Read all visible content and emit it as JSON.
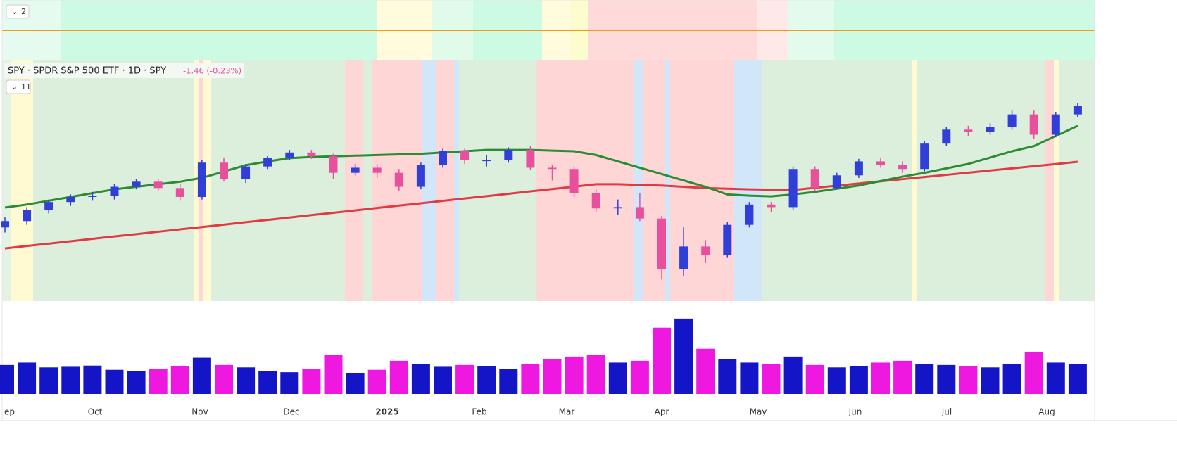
{
  "header": {
    "symbol": "SPY · SPDR S&P 500 ETF · 1D · SPY",
    "change": "-1.46 (-0.23%)"
  },
  "badges": [
    "2",
    "11"
  ],
  "x_axis_labels": [
    "ep",
    "Oct",
    "Nov",
    "Dec",
    "2025",
    "Feb",
    "Mar",
    "Apr",
    "May",
    "Jun",
    "Jul",
    "Aug"
  ],
  "chart": {
    "ylim": [
      490,
      680
    ],
    "up_color": "#2f3fd8",
    "down_color": "#e8509e",
    "candles": {
      "open": [
        548,
        553,
        562,
        568,
        572,
        573,
        580,
        584,
        579,
        572,
        599,
        586,
        596,
        603,
        607,
        604,
        591,
        595,
        591,
        580,
        597,
        608,
        601,
        601,
        609,
        595,
        594,
        575,
        563,
        564,
        555,
        515,
        533,
        526,
        550,
        566,
        564,
        594,
        579,
        589,
        600,
        597,
        594,
        614,
        625,
        623,
        627,
        637,
        621,
        637
      ],
      "high": [
        556,
        564,
        570,
        574,
        576,
        582,
        586,
        586,
        582,
        601,
        603,
        598,
        604,
        609,
        609,
        606,
        598,
        598,
        594,
        599,
        610,
        610,
        605,
        611,
        612,
        597,
        596,
        578,
        570,
        575,
        557,
        548,
        538,
        552,
        568,
        568,
        596,
        596,
        591,
        602,
        603,
        600,
        616,
        627,
        628,
        630,
        640,
        640,
        639,
        646
      ],
      "low": [
        544,
        550,
        559,
        565,
        569,
        570,
        578,
        577,
        569,
        570,
        584,
        583,
        594,
        601,
        602,
        586,
        589,
        587,
        577,
        578,
        595,
        598,
        596,
        599,
        593,
        585,
        572,
        560,
        558,
        553,
        507,
        510,
        520,
        524,
        548,
        560,
        562,
        577,
        578,
        587,
        595,
        591,
        592,
        612,
        620,
        621,
        625,
        618,
        619,
        635
      ],
      "close": [
        553,
        562,
        568,
        572,
        573,
        580,
        584,
        579,
        572,
        599,
        586,
        596,
        603,
        607,
        604,
        591,
        595,
        591,
        580,
        597,
        608,
        601,
        601,
        609,
        595,
        594,
        575,
        563,
        564,
        555,
        515,
        533,
        526,
        550,
        566,
        564,
        594,
        579,
        589,
        600,
        597,
        594,
        614,
        625,
        623,
        627,
        637,
        621,
        637,
        644
      ]
    },
    "ma50": {
      "color": "#2e8b35",
      "values": [
        563.7,
        566,
        569,
        572,
        575,
        578,
        580,
        582,
        584,
        587,
        592,
        597,
        600,
        602.5,
        603.5,
        604,
        604.5,
        605,
        605.5,
        606,
        607,
        608,
        609,
        609,
        609,
        608.5,
        608,
        605,
        600,
        595,
        590,
        585,
        580,
        574,
        573,
        572.5,
        574,
        576,
        578.5,
        581,
        584.5,
        588,
        591,
        594.5,
        598,
        603,
        608,
        612,
        620,
        628
      ]
    },
    "ma200": {
      "color": "#e03a44",
      "values": [
        531.5,
        533.4,
        535.2,
        537.1,
        539,
        540.9,
        542.7,
        544.6,
        546.5,
        548.3,
        550.2,
        552.1,
        553.9,
        555.8,
        557.7,
        559.5,
        561.4,
        563.3,
        565.2,
        567,
        568.9,
        570.8,
        572.6,
        574.5,
        576.4,
        578.2,
        580.1,
        582,
        582,
        581.5,
        581,
        580,
        579,
        578.5,
        578,
        577.7,
        577.5,
        579.2,
        580.9,
        582.6,
        584.3,
        586,
        587.7,
        589.4,
        591.1,
        592.8,
        594.5,
        596.2,
        597.9,
        599.7
      ]
    },
    "volume": {
      "ylim": [
        0,
        140
      ],
      "up_color": "#1515c8",
      "down_color": "#ee18e0",
      "values": [
        48,
        52,
        44,
        45,
        47,
        40,
        38,
        42,
        46,
        60,
        48,
        44,
        38,
        36,
        42,
        65,
        35,
        40,
        55,
        50,
        45,
        48,
        46,
        42,
        50,
        58,
        62,
        65,
        52,
        55,
        110,
        125,
        75,
        58,
        52,
        50,
        62,
        48,
        44,
        46,
        52,
        55,
        50,
        48,
        46,
        44,
        50,
        70,
        52,
        50
      ]
    }
  }
}
